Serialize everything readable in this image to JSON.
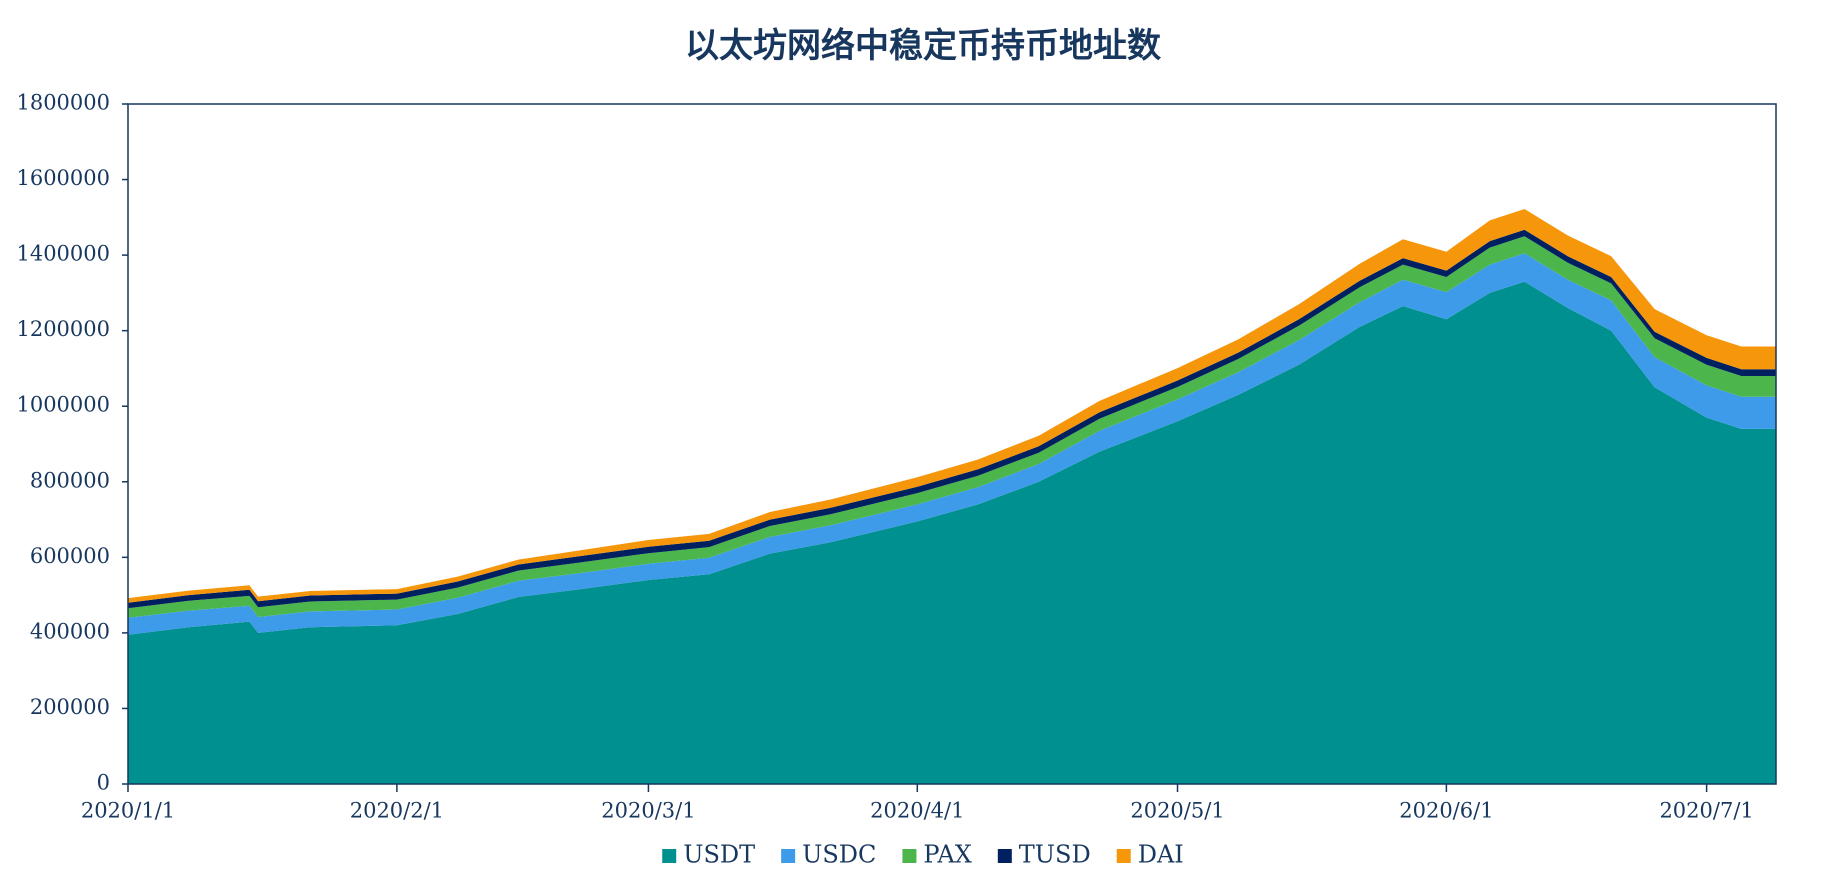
{
  "chart_data": {
    "type": "area",
    "stacked": true,
    "title": "以太坊网络中稳定币持币地址数",
    "xlabel": "",
    "ylabel": "",
    "ylim": [
      0,
      1800000
    ],
    "yticks": [
      0,
      200000,
      400000,
      600000,
      800000,
      1000000,
      1200000,
      1400000,
      1600000,
      1800000
    ],
    "xlim": [
      "2020/1/1",
      "2020/7/9"
    ],
    "xticks": [
      "2020/1/1",
      "2020/2/1",
      "2020/3/1",
      "2020/4/1",
      "2020/5/1",
      "2020/6/1",
      "2020/7/1"
    ],
    "grid": false,
    "legend_position": "bottom",
    "x": [
      "2020/1/1",
      "2020/1/8",
      "2020/1/15",
      "2020/1/16",
      "2020/1/22",
      "2020/2/1",
      "2020/2/8",
      "2020/2/15",
      "2020/2/22",
      "2020/3/1",
      "2020/3/8",
      "2020/3/15",
      "2020/3/22",
      "2020/4/1",
      "2020/4/8",
      "2020/4/15",
      "2020/4/22",
      "2020/5/1",
      "2020/5/8",
      "2020/5/15",
      "2020/5/22",
      "2020/5/27",
      "2020/6/1",
      "2020/6/6",
      "2020/6/10",
      "2020/6/15",
      "2020/6/20",
      "2020/6/25",
      "2020/7/1",
      "2020/7/5",
      "2020/7/9"
    ],
    "series": [
      {
        "name": "USDT",
        "color": "#009090",
        "values": [
          395000,
          415000,
          430000,
          400000,
          415000,
          420000,
          450000,
          495000,
          515000,
          540000,
          555000,
          610000,
          640000,
          695000,
          740000,
          800000,
          880000,
          960000,
          1030000,
          1110000,
          1210000,
          1265000,
          1230000,
          1300000,
          1330000,
          1260000,
          1200000,
          1050000,
          970000,
          940000,
          940000
        ]
      },
      {
        "name": "USDC",
        "color": "#3d9be9",
        "values": [
          45000,
          44000,
          42000,
          42000,
          42000,
          42000,
          43000,
          43000,
          43000,
          43000,
          44000,
          44000,
          45000,
          45000,
          46000,
          47000,
          55000,
          58000,
          60000,
          65000,
          65000,
          70000,
          72000,
          75000,
          75000,
          75000,
          80000,
          80000,
          85000,
          85000,
          85000
        ]
      },
      {
        "name": "PAX",
        "color": "#4cb54c",
        "values": [
          25000,
          26000,
          26000,
          26000,
          26000,
          26000,
          27000,
          27000,
          28000,
          28000,
          28000,
          29000,
          29000,
          30000,
          30000,
          30000,
          32000,
          33000,
          35000,
          38000,
          40000,
          40000,
          40000,
          45000,
          45000,
          45000,
          45000,
          50000,
          55000,
          55000,
          55000
        ]
      },
      {
        "name": "TUSD",
        "color": "#002060",
        "values": [
          15000,
          15000,
          16000,
          16000,
          16000,
          16000,
          16000,
          16000,
          17000,
          17000,
          17000,
          17000,
          17000,
          17000,
          17000,
          17000,
          17000,
          17000,
          17000,
          17000,
          17000,
          17000,
          17000,
          17000,
          17000,
          17000,
          17000,
          17000,
          18000,
          18000,
          18000
        ]
      },
      {
        "name": "DAI",
        "color": "#f6960b",
        "values": [
          12000,
          12000,
          12000,
          12000,
          12000,
          12000,
          13000,
          13000,
          15000,
          18000,
          18000,
          20000,
          22000,
          25000,
          26000,
          28000,
          30000,
          33000,
          35000,
          40000,
          45000,
          50000,
          50000,
          55000,
          55000,
          55000,
          55000,
          60000,
          60000,
          60000,
          60000
        ]
      }
    ]
  }
}
